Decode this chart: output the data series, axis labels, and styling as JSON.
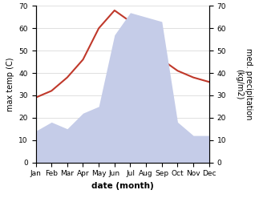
{
  "months": [
    "Jan",
    "Feb",
    "Mar",
    "Apr",
    "May",
    "Jun",
    "Jul",
    "Aug",
    "Sep",
    "Oct",
    "Nov",
    "Dec"
  ],
  "temperature": [
    29,
    32,
    38,
    46,
    60,
    68,
    63,
    58,
    46,
    41,
    38,
    36
  ],
  "precipitation": [
    14,
    18,
    15,
    22,
    25,
    57,
    67,
    65,
    63,
    18,
    12,
    12
  ],
  "temp_color": "#c0392b",
  "precip_fill_color": "#c5cce8",
  "ylabel_left": "max temp (C)",
  "ylabel_right": "med. precipitation\n(kg/m2)",
  "xlabel": "date (month)",
  "ylim": [
    0,
    70
  ],
  "tick_fontsize": 6.5,
  "ylabel_fontsize": 7,
  "xlabel_fontsize": 7.5,
  "xlabel_fontweight": "bold",
  "line_width": 1.5
}
